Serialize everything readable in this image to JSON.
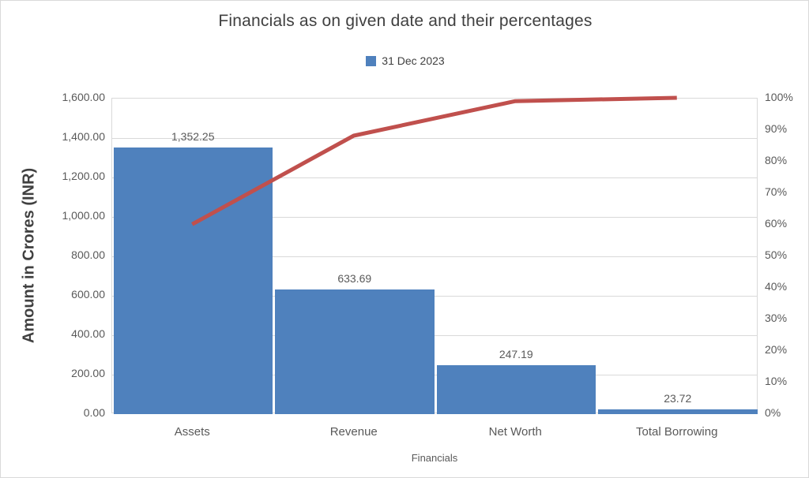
{
  "chart": {
    "title": "Financials as on given date and their percentages",
    "legend": {
      "label": "31 Dec 2023",
      "marker_color": "#4f81bd"
    },
    "y_left": {
      "title": "Amount in Crores (INR)",
      "ticks_top_to_bottom": [
        "1,600.00",
        "1,400.00",
        "1,200.00",
        "1,000.00",
        "800.00",
        "600.00",
        "400.00",
        "200.00",
        "0.00"
      ]
    },
    "y_right": {
      "ticks_top_to_bottom": [
        "100%",
        "90%",
        "80%",
        "70%",
        "60%",
        "50%",
        "40%",
        "30%",
        "20%",
        "10%",
        "0%"
      ]
    },
    "x_axis": {
      "title": "Financials"
    },
    "colors": {
      "bar": "#4f81bd",
      "line": "#c0504d",
      "gridline": "#d9d9d9",
      "text": "#595959",
      "title_text": "#404040"
    }
  },
  "chart_data": {
    "type": "bar",
    "subtype": "pareto-combo-bar-line",
    "title": "Financials as on given date and their percentages",
    "xlabel": "Financials",
    "ylabel": "Amount in Crores (INR)",
    "categories": [
      "Assets",
      "Revenue",
      "Net Worth",
      "Total Borrowing"
    ],
    "series": [
      {
        "name": "31 Dec 2023",
        "type": "bar",
        "axis": "left",
        "color": "#4f81bd",
        "values": [
          1352.25,
          633.69,
          247.19,
          23.72
        ],
        "data_labels": [
          "1,352.25",
          "633.69",
          "247.19",
          "23.72"
        ]
      },
      {
        "name": "cumulative-percentage",
        "type": "line",
        "axis": "right",
        "color": "#c0504d",
        "values": [
          59.92,
          88.0,
          98.95,
          100.0
        ]
      }
    ],
    "ylim_left": [
      0,
      1600
    ],
    "ytick_step_left": 200,
    "ylim_right": [
      0,
      100
    ],
    "ytick_step_right": 10,
    "grid": "horizontal",
    "legend_position": "top"
  }
}
